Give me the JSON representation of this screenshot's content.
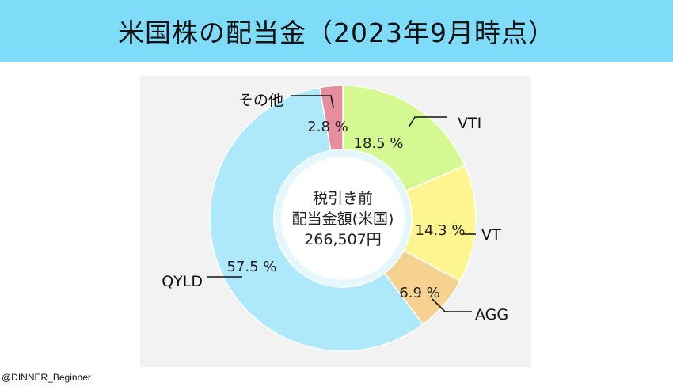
{
  "header": {
    "title": "米国株の配当金（2023年9月時点）"
  },
  "chart_data": {
    "type": "pie",
    "title": "米国株の配当金（2023年9月時点）",
    "center_label": [
      "税引き前",
      "配当金額(米国)",
      "266,507円"
    ],
    "slices": [
      {
        "name": "VTI",
        "value": 18.5,
        "label": "18.5 %",
        "color": "#d4f993"
      },
      {
        "name": "VT",
        "value": 14.3,
        "label": "14.3 %",
        "color": "#fdf58f"
      },
      {
        "name": "AGG",
        "value": 6.9,
        "label": "6.9 %",
        "color": "#f5d28f"
      },
      {
        "name": "QYLD",
        "value": 57.5,
        "label": "57.5 %",
        "color": "#aee8fb"
      },
      {
        "name": "その他",
        "value": 2.8,
        "label": "2.8 %",
        "color": "#e68e9d"
      }
    ]
  },
  "footer": {
    "credit": "@DINNER_Beginner"
  }
}
